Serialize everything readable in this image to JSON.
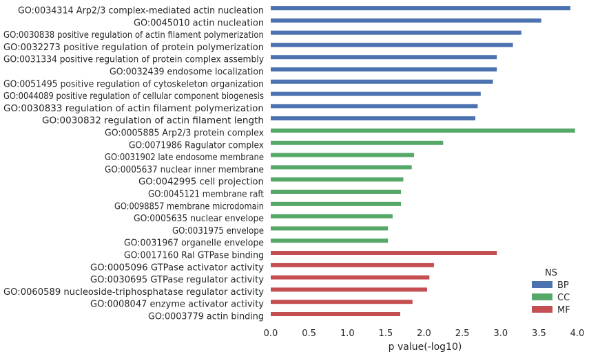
{
  "chart_data": {
    "type": "bar",
    "orientation": "horizontal",
    "xlabel": "p value(-log10)",
    "xlim": [
      0,
      4.0
    ],
    "xticks": [
      "0.0",
      "0.5",
      "1.0",
      "1.5",
      "2.0",
      "2.5",
      "3.0",
      "3.5",
      "4.0"
    ],
    "grid": false,
    "legend": {
      "title": "NS",
      "placement": "lower-right",
      "entries": [
        {
          "name": "BP",
          "color": "#4c72b0"
        },
        {
          "name": "CC",
          "color": "#55a868"
        },
        {
          "name": "MF",
          "color": "#c44e52"
        }
      ]
    },
    "categories": [
      {
        "label": "GO:0034314 Arp2/3 complex-mediated actin nucleation",
        "value": 3.91,
        "group": "BP"
      },
      {
        "label": "GO:0045010 actin nucleation",
        "value": 3.53,
        "group": "BP"
      },
      {
        "label": "GO:0030838 positive regulation of actin filament polymerization",
        "value": 3.27,
        "group": "BP"
      },
      {
        "label": "GO:0032273 positive regulation of protein polymerization",
        "value": 3.16,
        "group": "BP"
      },
      {
        "label": "GO:0031334 positive regulation of protein complex assembly",
        "value": 2.95,
        "group": "BP"
      },
      {
        "label": "GO:0032439 endosome localization",
        "value": 2.95,
        "group": "BP"
      },
      {
        "label": "GO:0051495 positive regulation of cytoskeleton organization",
        "value": 2.9,
        "group": "BP"
      },
      {
        "label": "GO:0044089 positive regulation of cellular component biogenesis",
        "value": 2.74,
        "group": "BP"
      },
      {
        "label": "GO:0030833 regulation of actin filament polymerization",
        "value": 2.7,
        "group": "BP"
      },
      {
        "label": "GO:0030832 regulation of actin filament length",
        "value": 2.67,
        "group": "BP"
      },
      {
        "label": "GO:0005885 Arp2/3 protein complex",
        "value": 3.97,
        "group": "CC"
      },
      {
        "label": "GO:0071986 Ragulator complex",
        "value": 2.25,
        "group": "CC"
      },
      {
        "label": "GO:0031902 late endosome membrane",
        "value": 1.87,
        "group": "CC"
      },
      {
        "label": "GO:0005637 nuclear inner membrane",
        "value": 1.84,
        "group": "CC"
      },
      {
        "label": "GO:0042995 cell projection",
        "value": 1.73,
        "group": "CC"
      },
      {
        "label": "GO:0045121 membrane raft",
        "value": 1.7,
        "group": "CC"
      },
      {
        "label": "GO:0098857 membrane microdomain",
        "value": 1.7,
        "group": "CC"
      },
      {
        "label": "GO:0005635 nuclear envelope",
        "value": 1.59,
        "group": "CC"
      },
      {
        "label": "GO:0031975 envelope",
        "value": 1.53,
        "group": "CC"
      },
      {
        "label": "GO:0031967 organelle envelope",
        "value": 1.53,
        "group": "CC"
      },
      {
        "label": "GO:0017160 Ral GTPase binding",
        "value": 2.95,
        "group": "MF"
      },
      {
        "label": "GO:0005096 GTPase activator activity",
        "value": 2.13,
        "group": "MF"
      },
      {
        "label": "GO:0030695 GTPase regulator activity",
        "value": 2.07,
        "group": "MF"
      },
      {
        "label": "GO:0060589 nucleoside-triphosphatase regulator activity",
        "value": 2.04,
        "group": "MF"
      },
      {
        "label": "GO:0008047 enzyme activator activity",
        "value": 1.85,
        "group": "MF"
      },
      {
        "label": "GO:0003779 actin binding",
        "value": 1.69,
        "group": "MF"
      }
    ]
  }
}
